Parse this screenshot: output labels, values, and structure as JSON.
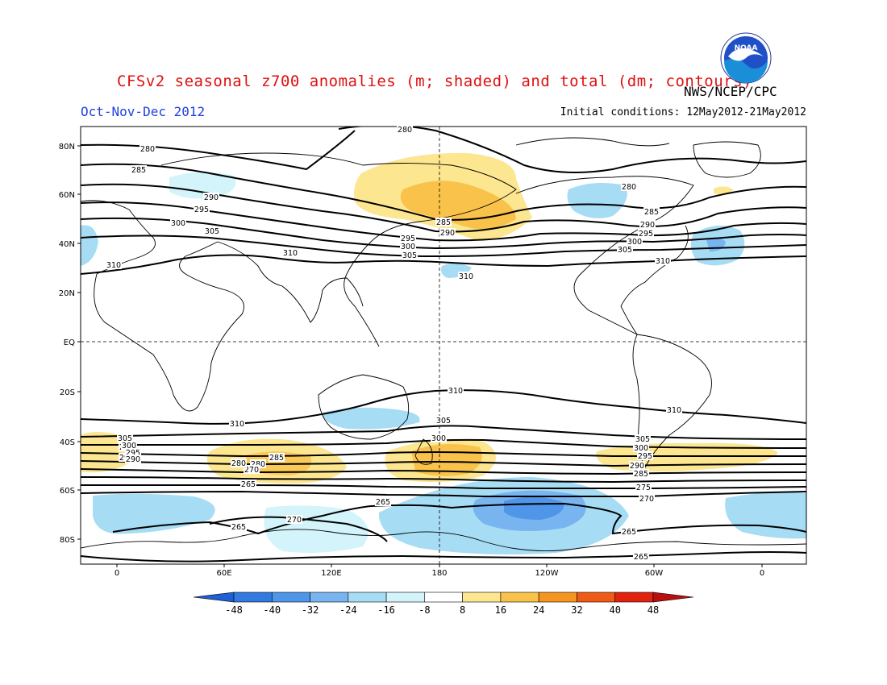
{
  "header": {
    "title": "CFSv2 seasonal z700 anomalies (m; shaded) and total (dm; contours)",
    "agency": "NWS/NCEP/CPC",
    "period": "Oct-Nov-Dec 2012",
    "initial_conditions": "Initial conditions: 12May2012-21May2012",
    "logo_text": "NOAA"
  },
  "axes": {
    "lat_labels": [
      "80N",
      "60N",
      "40N",
      "20N",
      "EQ",
      "20S",
      "40S",
      "60S",
      "80S"
    ],
    "lon_labels": [
      "0",
      "60E",
      "120E",
      "180",
      "120W",
      "60W",
      "0"
    ]
  },
  "colorbar": {
    "ticks": [
      "-48",
      "-40",
      "-32",
      "-24",
      "-16",
      "-8",
      "8",
      "16",
      "24",
      "32",
      "40",
      "48"
    ],
    "colors": [
      "#1e5fd6",
      "#3279e0",
      "#4f95e8",
      "#78b4f0",
      "#a6dcf4",
      "#d2f4fa",
      "#ffffff",
      "#fde690",
      "#f9c24a",
      "#f49620",
      "#ee5b16",
      "#e0220e",
      "#b80f0f"
    ]
  },
  "contour_labels": [
    "280",
    "280",
    "285",
    "290",
    "295",
    "300",
    "305",
    "310",
    "310",
    "310",
    "285",
    "290",
    "295",
    "300",
    "305",
    "280",
    "285",
    "290",
    "295",
    "300",
    "305",
    "310",
    "310",
    "310",
    "310",
    "305",
    "300",
    "295",
    "290",
    "305",
    "300",
    "295",
    "290",
    "305",
    "300",
    "295",
    "290",
    "285",
    "280",
    "275",
    "270",
    "265",
    "265",
    "265",
    "270",
    "265",
    "265",
    "270",
    "280",
    "285"
  ]
}
